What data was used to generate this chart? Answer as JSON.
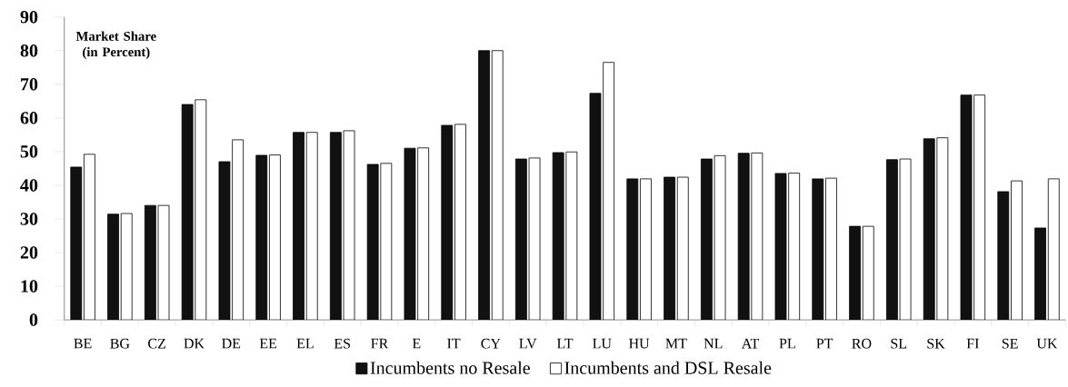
{
  "chart_data": {
    "type": "bar",
    "ylabel": "Market Share\n(in Percent)",
    "categories": [
      "BE",
      "BG",
      "CZ",
      "DK",
      "DE",
      "EE",
      "EL",
      "ES",
      "FR",
      "E",
      "IT",
      "CY",
      "LV",
      "LT",
      "LU",
      "HU",
      "MT",
      "NL",
      "AT",
      "PL",
      "PT",
      "RO",
      "SL",
      "SK",
      "FI",
      "SE",
      "UK"
    ],
    "series": [
      {
        "name": "Incumbents no Resale",
        "color": "#111111",
        "values": [
          45.4,
          31.4,
          34,
          64,
          47,
          48.9,
          55.7,
          55.7,
          46.2,
          51,
          57.8,
          80,
          47.8,
          49.7,
          67.3,
          41.9,
          42.4,
          47.8,
          49.5,
          43.5,
          41.9,
          27.8,
          47.6,
          53.8,
          66.8,
          38.1,
          27.3
        ]
      },
      {
        "name": "Incumbents and DSL Resale",
        "color": "#ffffff",
        "values": [
          49.2,
          31.6,
          34,
          65.4,
          53.5,
          49,
          55.7,
          56.2,
          46.5,
          51.1,
          58.1,
          80,
          48.1,
          49.9,
          76.5,
          41.9,
          42.4,
          48.8,
          49.6,
          43.6,
          42.1,
          27.8,
          47.8,
          54.1,
          66.8,
          41.3,
          41.9
        ]
      }
    ],
    "ylim": [
      0,
      90
    ],
    "yticks": [
      0,
      10,
      20,
      30,
      40,
      50,
      60,
      70,
      80,
      90
    ],
    "legend": "bottom",
    "grid": false
  }
}
